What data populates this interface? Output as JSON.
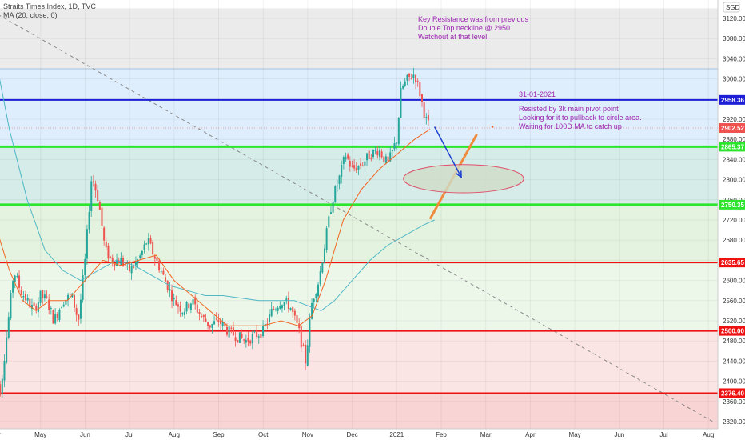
{
  "header": {
    "title": "Straits Times Index, 1D, TVC",
    "indicator": "MA (20, close, 0)"
  },
  "currency": "SGD",
  "notes": {
    "key_resistance": "Key Resistance was from previous\nDouble Top neckline @ 2950.\nWatchout at that level.",
    "date": "31-01-2021",
    "plan": "Resisted by 3k main pivot point\nLooking for it to pullback to circle area.\nWaiting for 100D MA to catch up"
  },
  "colors": {
    "blue_line": "#1c1fd6",
    "green_line": "#2ee52e",
    "red_line": "#ee1111",
    "up_candle": "#26a69a",
    "down_candle": "#ef5350",
    "ma_short": "#f26522",
    "ma_long": "#4fb7c5",
    "projection": "#f08a3c",
    "arrow": "#1a3fd1",
    "zone_gray": "#ebebeb",
    "zone_blue": "#dfeefc",
    "zone_teal": "#d5ece8",
    "zone_lightgreen": "#e3f3df",
    "zone_green2": "#ecf7ea",
    "zone_pink": "#fbe4e4",
    "zone_red": "#f9d4d4"
  },
  "chart_data": {
    "type": "candlestick",
    "title": "Straits Times Index, 1D, TVC",
    "ylim": [
      2300,
      3140
    ],
    "y_ticks": [
      2320,
      2360,
      2400,
      2440,
      2480,
      2520,
      2560,
      2600,
      2640,
      2680,
      2720,
      2760,
      2800,
      2840,
      2880,
      2920,
      2960,
      3000,
      3040,
      3080,
      3120
    ],
    "x_ticks": [
      {
        "label": "Apr",
        "month": 0
      },
      {
        "label": "May",
        "month": 1
      },
      {
        "label": "Jun",
        "month": 2
      },
      {
        "label": "Jul",
        "month": 3
      },
      {
        "label": "Aug",
        "month": 4
      },
      {
        "label": "Sep",
        "month": 5
      },
      {
        "label": "Oct",
        "month": 6
      },
      {
        "label": "Nov",
        "month": 7
      },
      {
        "label": "Dec",
        "month": 8
      },
      {
        "label": "2021",
        "month": 9
      },
      {
        "label": "Feb",
        "month": 10
      },
      {
        "label": "Mar",
        "month": 11
      },
      {
        "label": "Apr",
        "month": 12
      },
      {
        "label": "May",
        "month": 13
      },
      {
        "label": "Jun",
        "month": 14
      },
      {
        "label": "Jul",
        "month": 15
      },
      {
        "label": "Aug",
        "month": 16
      }
    ],
    "levels": [
      {
        "value": 2958.36,
        "label": "2958.36",
        "color": "#1c1fd6"
      },
      {
        "value": 2902.52,
        "label": "2902.52",
        "color": "#ef5350"
      },
      {
        "value": 2865.37,
        "label": "2865.37",
        "color": "#2ee52e"
      },
      {
        "value": 2750.35,
        "label": "2750.35",
        "color": "#2ee52e"
      },
      {
        "value": 2635.65,
        "label": "2635.65",
        "color": "#ee1111"
      },
      {
        "value": 2500.0,
        "label": "2500.00",
        "color": "#ee1111"
      },
      {
        "value": 2376.4,
        "label": "2376.40",
        "color": "#ee1111"
      }
    ],
    "close_path": [
      [
        -0.05,
        2420
      ],
      [
        0.1,
        2380
      ],
      [
        0.25,
        2500
      ],
      [
        0.4,
        2620
      ],
      [
        0.55,
        2580
      ],
      [
        0.7,
        2560
      ],
      [
        0.85,
        2540
      ],
      [
        1.0,
        2570
      ],
      [
        1.15,
        2560
      ],
      [
        1.3,
        2520
      ],
      [
        1.5,
        2560
      ],
      [
        1.7,
        2570
      ],
      [
        1.85,
        2520
      ],
      [
        2.0,
        2640
      ],
      [
        2.15,
        2810
      ],
      [
        2.3,
        2760
      ],
      [
        2.45,
        2660
      ],
      [
        2.6,
        2640
      ],
      [
        2.8,
        2640
      ],
      [
        3.0,
        2620
      ],
      [
        3.2,
        2640
      ],
      [
        3.4,
        2680
      ],
      [
        3.6,
        2640
      ],
      [
        3.8,
        2600
      ],
      [
        4.0,
        2560
      ],
      [
        4.2,
        2540
      ],
      [
        4.4,
        2560
      ],
      [
        4.6,
        2530
      ],
      [
        4.8,
        2510
      ],
      [
        5.0,
        2520
      ],
      [
        5.2,
        2500
      ],
      [
        5.4,
        2490
      ],
      [
        5.6,
        2480
      ],
      [
        5.8,
        2490
      ],
      [
        6.0,
        2500
      ],
      [
        6.2,
        2540
      ],
      [
        6.4,
        2560
      ],
      [
        6.6,
        2550
      ],
      [
        6.8,
        2500
      ],
      [
        6.95,
        2440
      ],
      [
        7.1,
        2560
      ],
      [
        7.25,
        2600
      ],
      [
        7.4,
        2680
      ],
      [
        7.55,
        2760
      ],
      [
        7.7,
        2800
      ],
      [
        7.85,
        2850
      ],
      [
        8.0,
        2820
      ],
      [
        8.2,
        2830
      ],
      [
        8.4,
        2850
      ],
      [
        8.6,
        2860
      ],
      [
        8.8,
        2830
      ],
      [
        9.0,
        2880
      ],
      [
        9.1,
        2980
      ],
      [
        9.25,
        3000
      ],
      [
        9.4,
        3010
      ],
      [
        9.5,
        2980
      ],
      [
        9.65,
        2920
      ],
      [
        9.75,
        2902.52
      ]
    ],
    "ma_short_path": [
      [
        -0.05,
        2720
      ],
      [
        0.3,
        2620
      ],
      [
        0.6,
        2560
      ],
      [
        0.9,
        2540
      ],
      [
        1.2,
        2560
      ],
      [
        1.6,
        2560
      ],
      [
        2.0,
        2600
      ],
      [
        2.4,
        2640
      ],
      [
        2.8,
        2630
      ],
      [
        3.2,
        2640
      ],
      [
        3.6,
        2650
      ],
      [
        4.0,
        2600
      ],
      [
        4.4,
        2570
      ],
      [
        4.8,
        2540
      ],
      [
        5.2,
        2510
      ],
      [
        5.6,
        2510
      ],
      [
        6.0,
        2510
      ],
      [
        6.4,
        2520
      ],
      [
        6.8,
        2510
      ],
      [
        7.1,
        2530
      ],
      [
        7.4,
        2600
      ],
      [
        7.8,
        2720
      ],
      [
        8.2,
        2780
      ],
      [
        8.6,
        2820
      ],
      [
        9.0,
        2850
      ],
      [
        9.4,
        2880
      ],
      [
        9.75,
        2900
      ]
    ],
    "ma_long_path": [
      [
        -0.05,
        3060
      ],
      [
        0.3,
        2900
      ],
      [
        0.7,
        2760
      ],
      [
        1.1,
        2660
      ],
      [
        1.5,
        2620
      ],
      [
        1.9,
        2600
      ],
      [
        2.3,
        2620
      ],
      [
        2.7,
        2640
      ],
      [
        3.1,
        2630
      ],
      [
        3.5,
        2610
      ],
      [
        3.9,
        2590
      ],
      [
        4.3,
        2580
      ],
      [
        4.7,
        2570
      ],
      [
        5.1,
        2570
      ],
      [
        5.5,
        2565
      ],
      [
        5.9,
        2560
      ],
      [
        6.3,
        2560
      ],
      [
        6.7,
        2560
      ],
      [
        7.0,
        2550
      ],
      [
        7.3,
        2540
      ],
      [
        7.6,
        2560
      ],
      [
        8.0,
        2600
      ],
      [
        8.4,
        2640
      ],
      [
        8.8,
        2670
      ],
      [
        9.2,
        2690
      ],
      [
        9.6,
        2710
      ],
      [
        9.85,
        2720
      ]
    ],
    "ma_projection": [
      [
        9.75,
        2722
      ],
      [
        10.8,
        2890
      ]
    ],
    "trendline": [
      [
        -0.2,
        3140
      ],
      [
        16.1,
        2320
      ]
    ],
    "arrow": {
      "from": [
        9.85,
        2905
      ],
      "to": [
        10.45,
        2805
      ]
    },
    "target_ellipse": {
      "center": [
        10.5,
        2802
      ],
      "rx_months": 1.35,
      "ry_value": 28
    },
    "small_dot": [
      11.15,
      2905
    ]
  }
}
